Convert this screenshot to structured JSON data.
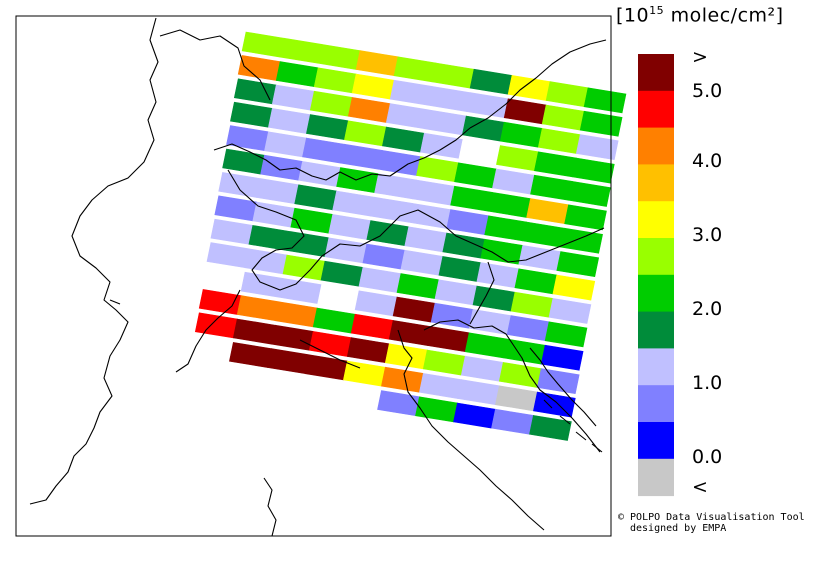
{
  "legend": {
    "title_prefix": "[10",
    "title_exp": "15",
    "title_suffix": " molec/cm²]",
    "labels": [
      ">",
      "5.0",
      "4.0",
      "3.0",
      "2.0",
      "1.0",
      "0.0",
      "<"
    ],
    "colors": [
      "#800000",
      "#ff0000",
      "#ff8000",
      "#ffc000",
      "#ffff00",
      "#99ff00",
      "#00cc00",
      "#008c3a",
      "#c0c0ff",
      "#8080ff",
      "#0000ff",
      "#c8c8c8"
    ]
  },
  "credit": {
    "line1": "© POLPO Data Visualisation Tool",
    "line2": "designed by EMPA"
  },
  "map": {
    "swath": [
      [
        "#99ff00",
        "#99ff00",
        "#99ff00",
        "#ffc000",
        "#99ff00",
        "#99ff00",
        "#008c3a",
        "#ffff00",
        "#99ff00",
        "#00cc00"
      ],
      [
        "#ff8000",
        "#00cc00",
        "#99ff00",
        "#ffff00",
        "#c0c0ff",
        "#c0c0ff",
        "#c0c0ff",
        "#800000",
        "#99ff00",
        "#00cc00"
      ],
      [
        "#008c3a",
        "#c0c0ff",
        "#99ff00",
        "#ff8000",
        "#c0c0ff",
        "#c0c0ff",
        "#008c3a",
        "#00cc00",
        "#99ff00",
        "#c0c0ff"
      ],
      [
        "#008c3a",
        "#c0c0ff",
        "#008c3a",
        "#99ff00",
        "#008c3a",
        "#c0c0ff",
        "#ffffff",
        "#99ff00",
        "#00cc00",
        "#00cc00"
      ],
      [
        "#8080ff",
        "#c0c0ff",
        "#8080ff",
        "#8080ff",
        "#8080ff",
        "#99ff00",
        "#00cc00",
        "#c0c0ff",
        "#00cc00",
        "#00cc00"
      ],
      [
        "#008c3a",
        "#8080ff",
        "#c0c0ff",
        "#00cc00",
        "#c0c0ff",
        "#c0c0ff",
        "#00cc00",
        "#00cc00",
        "#ffc000",
        "#00cc00"
      ],
      [
        "#c0c0ff",
        "#c0c0ff",
        "#008c3a",
        "#c0c0ff",
        "#c0c0ff",
        "#c0c0ff",
        "#8080ff",
        "#00cc00",
        "#00cc00",
        "#00cc00"
      ],
      [
        "#8080ff",
        "#c0c0ff",
        "#00cc00",
        "#c0c0ff",
        "#008c3a",
        "#c0c0ff",
        "#008c3a",
        "#00cc00",
        "#c0c0ff",
        "#00cc00"
      ],
      [
        "#c0c0ff",
        "#008c3a",
        "#008c3a",
        "#c0c0ff",
        "#8080ff",
        "#c0c0ff",
        "#008c3a",
        "#c0c0ff",
        "#00cc00",
        "#ffff00"
      ],
      [
        "#c0c0ff",
        "#c0c0ff",
        "#99ff00",
        "#008c3a",
        "#c0c0ff",
        "#00cc00",
        "#c0c0ff",
        "#008c3a",
        "#99ff00",
        "#c0c0ff"
      ],
      [
        "#ffffff",
        "#c0c0ff",
        "#c0c0ff",
        "#ffffff",
        "#c0c0ff",
        "#800000",
        "#8080ff",
        "#c0c0ff",
        "#8080ff",
        "#00cc00"
      ],
      [
        "#ff0000",
        "#ff8000",
        "#ff8000",
        "#00cc00",
        "#ff0000",
        "#800000",
        "#800000",
        "#00cc00",
        "#00cc00",
        "#0000ff"
      ],
      [
        "#ff0000",
        "#800000",
        "#800000",
        "#ff0000",
        "#800000",
        "#ffff00",
        "#99ff00",
        "#c0c0ff",
        "#99ff00",
        "#8080ff"
      ],
      [
        "#ffffff",
        "#800000",
        "#800000",
        "#800000",
        "#ffff00",
        "#ff8000",
        "#c0c0ff",
        "#c0c0ff",
        "#c8c8c8",
        "#0000ff"
      ],
      [
        "#ffffff",
        "#ffffff",
        "#ffffff",
        "#ffffff",
        "#ffffff",
        "#8080ff",
        "#00cc00",
        "#0000ff",
        "#8080ff",
        "#008c3a"
      ]
    ]
  }
}
